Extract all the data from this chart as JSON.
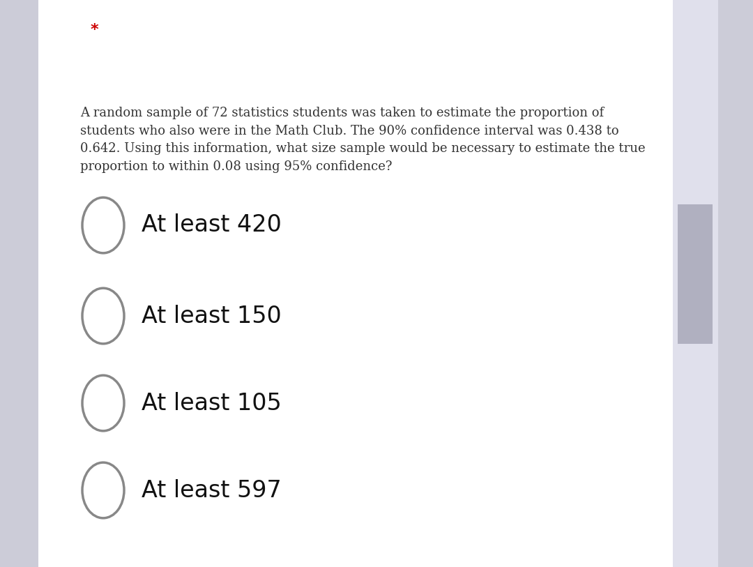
{
  "background_color": "#ffffff",
  "outer_background_color": "#ccccd8",
  "scrollbar_color": "#b8b8c8",
  "star_text": "*",
  "star_color": "#cc0000",
  "star_fontsize": 16,
  "question_text": "A random sample of 72 statistics students was taken to estimate the proportion of\nstudents who also were in the Math Club. The 90% confidence interval was 0.438 to\n0.642. Using this information, what size sample would be necessary to estimate the true\nproportion to within 0.08 using 95% confidence?",
  "question_fontsize": 13.0,
  "question_color": "#333333",
  "options": [
    "At least 420",
    "At least 150",
    "At least 105",
    "At least 597"
  ],
  "option_fontsize": 24,
  "option_color": "#111111",
  "circle_color": "#888888",
  "circle_linewidth": 2.5
}
